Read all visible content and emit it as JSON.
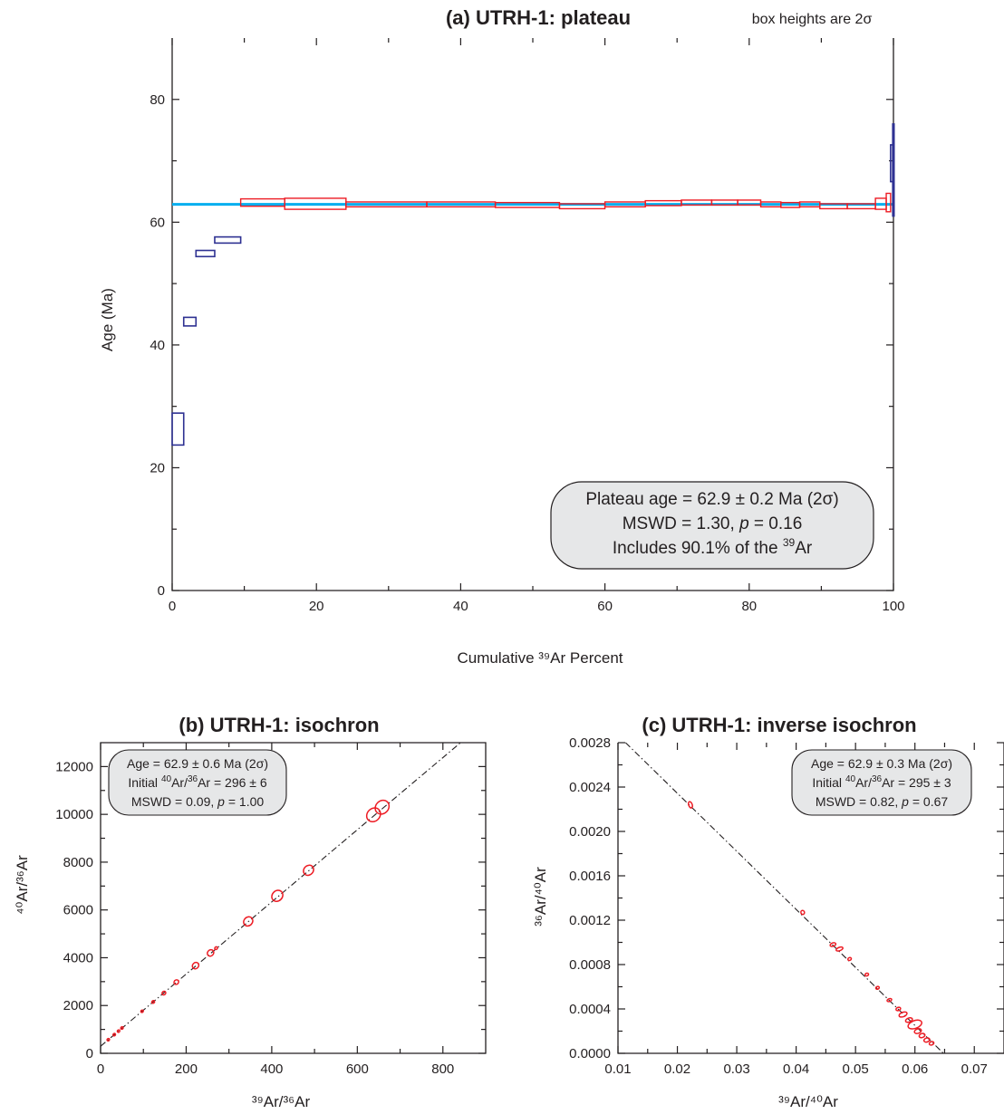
{
  "chart_data": [
    {
      "id": "a",
      "type": "bar",
      "title": "(a) UTRH-1: plateau",
      "note": "box heights are 2σ",
      "xlabel": "Cumulative ³⁹Ar Percent",
      "ylabel": "Age (Ma)",
      "xlim": [
        0,
        100
      ],
      "ylim": [
        0,
        90
      ],
      "xticks": [
        0,
        20,
        40,
        60,
        80,
        100
      ],
      "yticks": [
        0,
        20,
        40,
        60,
        80
      ],
      "plateau_age": 62.9,
      "plateau_line_color": "#00aeef",
      "rejected_color": "#2e3192",
      "accepted_color": "#ed1c24",
      "steps": [
        {
          "x0": 0.0,
          "x1": 1.6,
          "age": 26.3,
          "err": 2.6,
          "accepted": false
        },
        {
          "x0": 1.6,
          "x1": 3.3,
          "age": 43.8,
          "err": 0.7,
          "accepted": false
        },
        {
          "x0": 3.3,
          "x1": 5.9,
          "age": 54.9,
          "err": 0.5,
          "accepted": false
        },
        {
          "x0": 5.9,
          "x1": 9.5,
          "age": 57.1,
          "err": 0.5,
          "accepted": false
        },
        {
          "x0": 9.5,
          "x1": 15.6,
          "age": 63.2,
          "err": 0.6,
          "accepted": true
        },
        {
          "x0": 15.6,
          "x1": 24.1,
          "age": 63.0,
          "err": 0.9,
          "accepted": true
        },
        {
          "x0": 24.1,
          "x1": 35.3,
          "age": 62.9,
          "err": 0.4,
          "accepted": true
        },
        {
          "x0": 35.3,
          "x1": 44.8,
          "age": 62.9,
          "err": 0.4,
          "accepted": true
        },
        {
          "x0": 44.8,
          "x1": 53.7,
          "age": 62.8,
          "err": 0.4,
          "accepted": true
        },
        {
          "x0": 53.7,
          "x1": 60.0,
          "age": 62.6,
          "err": 0.4,
          "accepted": true
        },
        {
          "x0": 60.0,
          "x1": 65.6,
          "age": 62.9,
          "err": 0.4,
          "accepted": true
        },
        {
          "x0": 65.6,
          "x1": 70.6,
          "age": 63.1,
          "err": 0.4,
          "accepted": true
        },
        {
          "x0": 70.6,
          "x1": 74.8,
          "age": 63.2,
          "err": 0.4,
          "accepted": true
        },
        {
          "x0": 74.8,
          "x1": 78.4,
          "age": 63.2,
          "err": 0.4,
          "accepted": true
        },
        {
          "x0": 78.4,
          "x1": 81.6,
          "age": 63.2,
          "err": 0.4,
          "accepted": true
        },
        {
          "x0": 81.6,
          "x1": 84.4,
          "age": 62.9,
          "err": 0.4,
          "accepted": true
        },
        {
          "x0": 84.4,
          "x1": 87.0,
          "age": 62.8,
          "err": 0.4,
          "accepted": true
        },
        {
          "x0": 87.0,
          "x1": 89.8,
          "age": 62.9,
          "err": 0.4,
          "accepted": true
        },
        {
          "x0": 89.8,
          "x1": 93.6,
          "age": 62.6,
          "err": 0.4,
          "accepted": true
        },
        {
          "x0": 93.6,
          "x1": 97.5,
          "age": 62.6,
          "err": 0.4,
          "accepted": true
        },
        {
          "x0": 97.5,
          "x1": 99.0,
          "age": 63.0,
          "err": 0.9,
          "accepted": true
        },
        {
          "x0": 99.0,
          "x1": 99.6,
          "age": 63.2,
          "err": 1.5,
          "accepted": true
        },
        {
          "x0": 99.6,
          "x1": 99.9,
          "age": 69.6,
          "err": 3.0,
          "accepted": false
        },
        {
          "x0": 99.9,
          "x1": 100.0,
          "age": 68.5,
          "err": 7.5,
          "accepted": false
        }
      ],
      "annotation": {
        "line1": "Plateau age = 62.9 ± 0.2 Ma (2σ)",
        "line2_prefix": "MSWD = 1.30, ",
        "line2_p": "p",
        "line2_suffix": " = 0.16",
        "line3_prefix": "Includes 90.1% of the ",
        "line3_sup": "39",
        "line3_suffix": "Ar"
      }
    },
    {
      "id": "b",
      "type": "scatter",
      "title": "(b) UTRH-1: isochron",
      "xlabel": "³⁹Ar/³⁶Ar",
      "ylabel": "⁴⁰Ar/³⁶Ar",
      "xlim": [
        0,
        900
      ],
      "ylim": [
        0,
        13000
      ],
      "xticks": [
        0,
        200,
        400,
        600,
        800
      ],
      "yticks": [
        0,
        2000,
        4000,
        6000,
        8000,
        10000,
        12000
      ],
      "fit": {
        "intercept": 296,
        "slope": 15.1
      },
      "ellipse_color": "#ed1c24",
      "points": [
        {
          "x": 18,
          "y": 570,
          "sx": 1.5,
          "sy": 25
        },
        {
          "x": 32,
          "y": 780,
          "sx": 1.5,
          "sy": 25
        },
        {
          "x": 42,
          "y": 930,
          "sx": 1.5,
          "sy": 25
        },
        {
          "x": 50,
          "y": 1060,
          "sx": 2,
          "sy": 30
        },
        {
          "x": 97,
          "y": 1760,
          "sx": 2,
          "sy": 35
        },
        {
          "x": 123,
          "y": 2150,
          "sx": 3,
          "sy": 50
        },
        {
          "x": 148,
          "y": 2520,
          "sx": 4,
          "sy": 70
        },
        {
          "x": 177,
          "y": 2980,
          "sx": 5,
          "sy": 90
        },
        {
          "x": 222,
          "y": 3670,
          "sx": 7,
          "sy": 120
        },
        {
          "x": 257,
          "y": 4200,
          "sx": 7,
          "sy": 120
        },
        {
          "x": 270,
          "y": 4400,
          "sx": 3,
          "sy": 50
        },
        {
          "x": 345,
          "y": 5520,
          "sx": 10,
          "sy": 170
        },
        {
          "x": 413,
          "y": 6590,
          "sx": 12,
          "sy": 200
        },
        {
          "x": 486,
          "y": 7660,
          "sx": 11,
          "sy": 190
        },
        {
          "x": 638,
          "y": 9980,
          "sx": 15,
          "sy": 260
        },
        {
          "x": 658,
          "y": 10300,
          "sx": 15,
          "sy": 260
        }
      ],
      "annotation": {
        "line1": "Age = 62.9 ± 0.6 Ma (2σ)",
        "line2_prefix": "Initial ",
        "line2_sup1": "40",
        "line2_mid": "Ar/",
        "line2_sup2": "36",
        "line2_suffix": "Ar = 296 ± 6",
        "line3_prefix": "MSWD = 0.09, ",
        "line3_p": "p",
        "line3_suffix": " = 1.00"
      }
    },
    {
      "id": "c",
      "type": "scatter",
      "title": "(c) UTRH-1: inverse isochron",
      "xlabel": "³⁹Ar/⁴⁰Ar",
      "ylabel": "³⁶Ar/⁴⁰Ar",
      "xlim": [
        0.01,
        0.075
      ],
      "ylim": [
        0,
        0.0028
      ],
      "xticks": [
        0.01,
        0.02,
        0.03,
        0.04,
        0.05,
        0.06,
        0.07
      ],
      "yticks": [
        0.0,
        0.0004,
        0.0008,
        0.0012,
        0.0016,
        0.002,
        0.0024,
        0.0028
      ],
      "xtick_labels": [
        "0.01",
        "0.02",
        "0.03",
        "0.04",
        "0.05",
        "0.06",
        "0.07"
      ],
      "ytick_labels": [
        "0.0000",
        "0.0004",
        "0.0008",
        "0.0012",
        "0.0016",
        "0.0020",
        "0.0024",
        "0.0028"
      ],
      "fit": {
        "x_intercept": 0.0648,
        "y_intercept": 0.00339
      },
      "ellipse_color": "#ed1c24",
      "points": [
        {
          "x": 0.0222,
          "y": 0.00224,
          "sx": 0.0003,
          "sy": 3e-05
        },
        {
          "x": 0.0411,
          "y": 0.00127,
          "sx": 0.0003,
          "sy": 1.8e-05
        },
        {
          "x": 0.0462,
          "y": 0.00098,
          "sx": 0.0005,
          "sy": 1.5e-05
        },
        {
          "x": 0.0473,
          "y": 0.00094,
          "sx": 0.0006,
          "sy": 1.5e-05
        },
        {
          "x": 0.049,
          "y": 0.00085,
          "sx": 0.0003,
          "sy": 1.2e-05
        },
        {
          "x": 0.0519,
          "y": 0.00071,
          "sx": 0.0003,
          "sy": 1.2e-05
        },
        {
          "x": 0.0537,
          "y": 0.00059,
          "sx": 0.0003,
          "sy": 1.2e-05
        },
        {
          "x": 0.0557,
          "y": 0.00048,
          "sx": 0.0004,
          "sy": 1.2e-05
        },
        {
          "x": 0.0572,
          "y": 0.0004,
          "sx": 0.0004,
          "sy": 1.4e-05
        },
        {
          "x": 0.058,
          "y": 0.00035,
          "sx": 0.0007,
          "sy": 2e-05
        },
        {
          "x": 0.059,
          "y": 0.0003,
          "sx": 0.0006,
          "sy": 1.8e-05
        },
        {
          "x": 0.06,
          "y": 0.00026,
          "sx": 0.0012,
          "sy": 3.5e-05
        },
        {
          "x": 0.0605,
          "y": 0.0002,
          "sx": 0.0006,
          "sy": 2e-05
        },
        {
          "x": 0.0612,
          "y": 0.00016,
          "sx": 0.0005,
          "sy": 1.8e-05
        },
        {
          "x": 0.062,
          "y": 0.00012,
          "sx": 0.0005,
          "sy": 1.8e-05
        },
        {
          "x": 0.0628,
          "y": 9e-05,
          "sx": 0.0004,
          "sy": 1.5e-05
        }
      ],
      "annotation": {
        "line1": "Age = 62.9 ± 0.3 Ma (2σ)",
        "line2_prefix": "Initial ",
        "line2_sup1": "40",
        "line2_mid": "Ar/",
        "line2_sup2": "36",
        "line2_suffix": "Ar = 295 ± 3",
        "line3_prefix": "MSWD = 0.82, ",
        "line3_p": "p",
        "line3_suffix": " = 0.67"
      }
    }
  ]
}
